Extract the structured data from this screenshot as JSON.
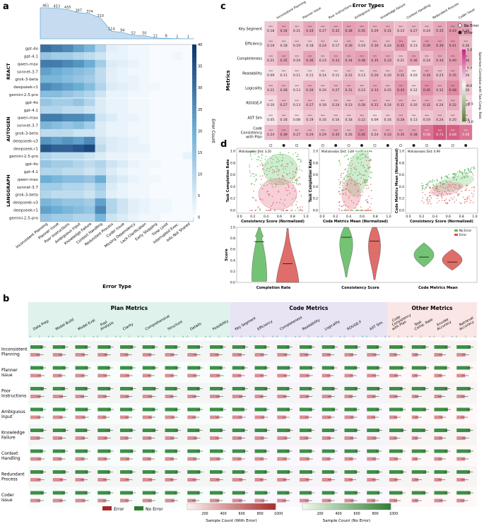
{
  "chart_data": [
    {
      "panel": "a",
      "type": "heatmap",
      "xlabel": "Error Type",
      "colorbar_label": "Error Count",
      "colorbar_ticks": [
        0,
        5,
        10,
        15,
        20,
        25,
        30,
        35,
        40
      ],
      "top_bar_values": [
        461,
        453,
        435,
        387,
        374,
        310,
        114,
        94,
        52,
        50,
        12,
        8,
        2,
        1
      ],
      "columns": [
        "Inconsistent Planning",
        "Planner Issue",
        "Poor Instructions",
        "Ambiguous Input",
        "Knowledge Failure",
        "Context Handling",
        "Redundant Process",
        "Coder Issue",
        "Missing Dependency",
        "Lack Clarification",
        "Early Stopping",
        "Time Limit",
        "Interrupted Exec.",
        "Info Not Shared"
      ],
      "groups": [
        {
          "name": "REACT",
          "rows": [
            "gpt-4o",
            "gpt-4.1",
            "qwen-max",
            "sonnet-3.7",
            "grok-3-beta",
            "deepseek-r1",
            "gemini-2.5-pro"
          ]
        },
        {
          "name": "AUTOGEN",
          "rows": [
            "gpt-4o",
            "gpt-4.1",
            "qwen-max",
            "sonnet-3.7",
            "grok-3-beta",
            "deepseek-v3",
            "deepseek-r1",
            "gemini-2.5-pro"
          ]
        },
        {
          "name": "LANGGRAPH",
          "rows": [
            "gpt-4o",
            "gpt-4.1",
            "qwen-max",
            "sonnet-3.7",
            "grok-3-beta",
            "deepseek-v3",
            "deepseek-r1",
            "gemini-2.5-pro"
          ]
        }
      ],
      "values": [
        [
          30,
          28,
          26,
          22,
          18,
          10,
          3,
          2,
          1,
          1,
          0,
          0,
          0,
          0
        ],
        [
          14,
          12,
          12,
          10,
          8,
          6,
          2,
          2,
          1,
          1,
          0,
          0,
          1,
          0
        ],
        [
          28,
          28,
          26,
          24,
          20,
          12,
          4,
          3,
          2,
          1,
          0,
          0,
          0,
          0
        ],
        [
          22,
          20,
          18,
          16,
          14,
          8,
          3,
          2,
          1,
          1,
          0,
          0,
          0,
          0
        ],
        [
          18,
          18,
          16,
          14,
          12,
          8,
          3,
          2,
          2,
          1,
          0,
          0,
          0,
          0
        ],
        [
          26,
          24,
          22,
          20,
          16,
          10,
          4,
          3,
          2,
          1,
          1,
          0,
          0,
          0
        ],
        [
          16,
          16,
          14,
          12,
          10,
          6,
          2,
          2,
          1,
          1,
          0,
          0,
          0,
          0
        ],
        [
          14,
          12,
          12,
          14,
          10,
          4,
          2,
          2,
          1,
          1,
          0,
          0,
          0,
          0
        ],
        [
          10,
          10,
          8,
          8,
          6,
          4,
          2,
          2,
          1,
          1,
          0,
          0,
          0,
          0
        ],
        [
          28,
          28,
          26,
          26,
          24,
          6,
          4,
          2,
          2,
          1,
          0,
          0,
          0,
          0
        ],
        [
          18,
          16,
          14,
          16,
          12,
          4,
          2,
          2,
          1,
          1,
          0,
          0,
          0,
          0
        ],
        [
          8,
          8,
          8,
          6,
          6,
          4,
          2,
          2,
          1,
          1,
          0,
          0,
          0,
          0
        ],
        [
          24,
          22,
          24,
          22,
          26,
          6,
          4,
          3,
          2,
          1,
          0,
          0,
          0,
          0
        ],
        [
          34,
          32,
          32,
          34,
          36,
          8,
          4,
          3,
          2,
          2,
          0,
          0,
          0,
          0
        ],
        [
          10,
          8,
          8,
          8,
          6,
          4,
          2,
          2,
          1,
          1,
          0,
          0,
          0,
          2
        ],
        [
          14,
          12,
          12,
          10,
          8,
          10,
          6,
          4,
          2,
          1,
          1,
          0,
          0,
          0
        ],
        [
          10,
          10,
          8,
          8,
          6,
          8,
          4,
          2,
          1,
          1,
          0,
          0,
          0,
          0
        ],
        [
          20,
          18,
          16,
          16,
          14,
          20,
          6,
          4,
          2,
          1,
          1,
          0,
          0,
          0
        ],
        [
          12,
          12,
          10,
          10,
          8,
          12,
          4,
          2,
          1,
          1,
          0,
          0,
          0,
          0
        ],
        [
          10,
          8,
          8,
          8,
          6,
          10,
          3,
          2,
          1,
          1,
          0,
          0,
          0,
          0
        ],
        [
          18,
          16,
          14,
          14,
          12,
          22,
          10,
          6,
          3,
          2,
          1,
          1,
          0,
          0
        ],
        [
          22,
          20,
          18,
          16,
          14,
          26,
          10,
          6,
          3,
          2,
          1,
          1,
          0,
          0
        ],
        [
          14,
          12,
          12,
          10,
          10,
          18,
          6,
          4,
          2,
          1,
          1,
          0,
          0,
          0
        ]
      ]
    },
    {
      "panel": "b",
      "type": "bar",
      "groups": [
        {
          "name": "Plan Metrics",
          "metrics": [
            "Data Prep",
            "Model Build",
            "Model Eval",
            "Post Analysis",
            "Clarity",
            "Comprehensive",
            "Structure",
            "Details",
            "Feasibility"
          ]
        },
        {
          "name": "Code Metrics",
          "metrics": [
            "Key Segment",
            "Efficiency",
            "Completeness",
            "Readability",
            "Logicality",
            "ROUGE-F",
            "AST Sim"
          ]
        },
        {
          "name": "Other Metrics",
          "metrics": [
            "Code Consistency with Plan",
            "Task Comp. Rate",
            "Envoke Accuracy",
            "Retrieval Accuracy"
          ]
        }
      ],
      "rows": [
        "Inconsistent Planning",
        "Planner Issue",
        "Poor Instructions",
        "Ambiguous Input",
        "Knowledge Failure",
        "Context Handling",
        "Redundant Process",
        "Coder Issue"
      ],
      "legend": [
        "Error",
        "No Error"
      ],
      "colorbars": [
        {
          "label": "Sample Count (With Error)",
          "ticks": [
            200,
            400,
            600,
            800,
            1000
          ]
        },
        {
          "label": "Sample Count (No Error)",
          "ticks": [
            200,
            400,
            600,
            800,
            1000
          ]
        }
      ],
      "no_error_values": [
        0.72,
        0.7,
        0.69,
        0.71,
        0.7,
        0.71,
        0.7,
        0.7,
        0.72,
        0.7,
        0.68,
        0.7,
        0.69,
        0.7,
        0.71,
        0.69,
        0.76,
        0.78,
        0.74,
        0.76
      ],
      "error_values": [
        0.58,
        0.55,
        0.54,
        0.52,
        0.5,
        0.52,
        0.51,
        0.51,
        0.55,
        0.55,
        0.52,
        0.54,
        0.53,
        0.51,
        0.5,
        0.51,
        0.46,
        0.36,
        0.46,
        0.48
      ]
    },
    {
      "panel": "c",
      "type": "heatmap",
      "title": "Error Types",
      "ylabel": "Metrics",
      "colorbar_label": "Spearman Correlation with Task Comp. Rate",
      "colorbar_ticks": [
        "1.0",
        "0.5",
        "0.0",
        "-0.5",
        "-1.0"
      ],
      "columns": [
        "Inconsistent Planning",
        "Planner Issue",
        "Poor Instructions",
        "Ambiguous Input",
        "Knowledge Failure",
        "Context Handling",
        "Redundant Process",
        "Coder Issue"
      ],
      "rows": [
        "Key Segment",
        "Efficiency",
        "Completeness",
        "Readability",
        "Logicality",
        "ROUGE-F",
        "AST Sim",
        "Code Consistency with Plan"
      ],
      "values": [
        [
          "0.18",
          "0.34",
          "0.21",
          "0.34",
          "0.27",
          "0.32",
          "0.38",
          "0.35",
          "0.29",
          "0.31",
          "0.23",
          "0.27",
          "0.24",
          "0.35",
          "0.43",
          "0.36"
        ],
        [
          "0.19",
          "0.18",
          "0.19",
          "0.18",
          "0.24",
          "0.17",
          "0.30",
          "0.19",
          "0.30",
          "0.24",
          "0.42",
          "0.13",
          "0.39",
          "0.39",
          "0.41",
          "0.26"
        ],
        [
          "0.21",
          "0.35",
          "0.19",
          "0.36",
          "0.23",
          "0.33",
          "0.34",
          "0.38",
          "0.35",
          "0.33",
          "0.21",
          "0.36",
          "0.24",
          "0.34",
          "0.40",
          "0.36"
        ],
        [
          "0.09",
          "0.11",
          "0.11",
          "0.11",
          "0.14",
          "0.11",
          "0.22",
          "0.13",
          "0.26",
          "0.20",
          "0.31",
          "0.03",
          "0.34",
          "0.23",
          "0.35",
          "0.16"
        ],
        [
          "0.21",
          "0.28",
          "0.13",
          "0.30",
          "0.20",
          "0.27",
          "0.31",
          "0.23",
          "0.33",
          "0.25",
          "0.43",
          "0.12",
          "0.45",
          "0.32",
          "0.48",
          "0.20"
        ],
        [
          "0.10",
          "0.27",
          "0.13",
          "0.27",
          "0.18",
          "0.24",
          "0.23",
          "0.28",
          "0.31",
          "0.24",
          "0.31",
          "0.20",
          "0.32",
          "0.24",
          "0.32",
          "0.11"
        ],
        [
          "0.05",
          "0.18",
          "0.08",
          "0.19",
          "0.16",
          "0.16",
          "0.18",
          "0.22",
          "0.09",
          "0.16",
          "0.28",
          "0.13",
          "0.19",
          "0.24",
          "0.20",
          "0.14"
        ],
        [
          "0.24",
          "0.39",
          "0.27",
          "0.29",
          "0.29",
          "0.35",
          "0.26",
          "0.45",
          "0.24",
          "0.33",
          "0.35",
          "0.38",
          "0.58",
          "0.73",
          "0.68",
          "0.58"
        ]
      ],
      "legend": [
        "No Error",
        "Error"
      ]
    },
    {
      "panel": "d",
      "type": "scatter",
      "plots": [
        {
          "annotation": "Mahalanobis Dist: 1.20",
          "xlabel": "Consistency Score (Normalized)",
          "ylabel": "Task Completion Rate"
        },
        {
          "annotation": "Mahalanobis Dist: 1.24",
          "xlabel": "Code Metrics Mean (Normalized)",
          "ylabel": "Task Completion Rate"
        },
        {
          "annotation": "Mahalanobis Dist: 0.99",
          "xlabel": "Consistency Score (Normalized)",
          "ylabel": "Code Metrics Mean (Normalized)"
        }
      ],
      "ticks": [
        "0.0",
        "0.2",
        "0.4",
        "0.6",
        "0.8",
        "1.0"
      ],
      "violin": {
        "ylabel": "Score",
        "categories": [
          "Completion Rate",
          "Consistency Score",
          "Code Metrics Mean"
        ],
        "legend": [
          "No Error",
          "Error"
        ],
        "no_error_median": [
          0.74,
          0.82,
          0.46
        ],
        "error_median": [
          0.34,
          0.75,
          0.37
        ],
        "yticks": [
          "0.0",
          "0.2",
          "0.4",
          "0.6",
          "0.8",
          "1.0"
        ]
      }
    }
  ],
  "panel_labels": [
    "a",
    "b",
    "c",
    "d"
  ]
}
